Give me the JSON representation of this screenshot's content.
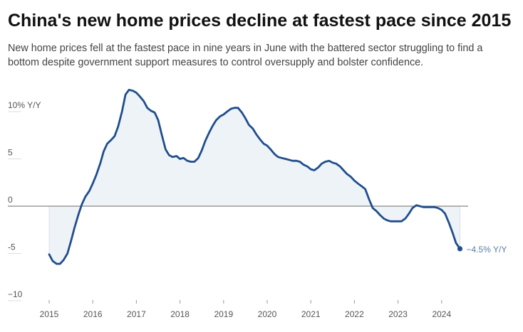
{
  "title": "China's new home prices decline at fastest pace since 2015",
  "subtitle": "New home prices fell at the fastest pace in nine years in June with the battered sector struggling to find a bottom despite government support measures to control oversupply and bolster confidence.",
  "colors": {
    "line": "#1f4e8c",
    "area": "#eef3f7",
    "zero_line": "#888888",
    "grid": "#dddddd"
  },
  "chart_data": {
    "type": "area",
    "xlabel": "",
    "ylabel": "",
    "ylim": [
      -10,
      12
    ],
    "xlim": [
      2015.0,
      2025.0
    ],
    "y_ticks": [
      {
        "value": 10,
        "label": "10% Y/Y"
      },
      {
        "value": 5,
        "label": "5"
      },
      {
        "value": 0,
        "label": "0"
      },
      {
        "value": -5,
        "label": "-5"
      },
      {
        "value": -10,
        "label": "−10"
      }
    ],
    "x_ticks": [
      "2015",
      "2016",
      "2017",
      "2018",
      "2019",
      "2020",
      "2021",
      "2022",
      "2023",
      "2024"
    ],
    "grid": false,
    "end_label": "−4.5% Y/Y",
    "series": [
      {
        "x": [
          2015.0,
          2015.08,
          2015.17,
          2015.25,
          2015.33,
          2015.42,
          2015.5,
          2015.58,
          2015.67,
          2015.75,
          2015.83,
          2015.92,
          2016.0,
          2016.08,
          2016.17,
          2016.25,
          2016.33,
          2016.42,
          2016.5,
          2016.58,
          2016.67,
          2016.75,
          2016.83,
          2016.92,
          2017.0,
          2017.08,
          2017.17,
          2017.25,
          2017.33,
          2017.42,
          2017.5,
          2017.58,
          2017.67,
          2017.75,
          2017.83,
          2017.92,
          2018.0,
          2018.08,
          2018.17,
          2018.25,
          2018.33,
          2018.42,
          2018.5,
          2018.58,
          2018.67,
          2018.75,
          2018.83,
          2018.92,
          2019.0,
          2019.08,
          2019.17,
          2019.25,
          2019.33,
          2019.42,
          2019.5,
          2019.58,
          2019.67,
          2019.75,
          2019.83,
          2019.92,
          2020.0,
          2020.08,
          2020.17,
          2020.25,
          2020.33,
          2020.42,
          2020.5,
          2020.58,
          2020.67,
          2020.75,
          2020.83,
          2020.92,
          2021.0,
          2021.08,
          2021.17,
          2021.25,
          2021.33,
          2021.42,
          2021.5,
          2021.58,
          2021.67,
          2021.75,
          2021.83,
          2021.92,
          2022.0,
          2022.08,
          2022.17,
          2022.25,
          2022.33,
          2022.42,
          2022.5,
          2022.58,
          2022.67,
          2022.75,
          2022.83,
          2022.92,
          2023.0,
          2023.08,
          2023.17,
          2023.25,
          2023.33,
          2023.42,
          2023.5,
          2023.58,
          2023.67,
          2023.75,
          2023.83,
          2023.92,
          2024.0,
          2024.08,
          2024.17,
          2024.25,
          2024.33,
          2024.42
        ],
        "y": [
          -5.1,
          -5.8,
          -6.1,
          -6.1,
          -5.7,
          -5.0,
          -3.7,
          -2.3,
          -0.9,
          0.2,
          1.0,
          1.6,
          2.4,
          3.3,
          4.5,
          5.8,
          6.6,
          7.0,
          7.4,
          8.4,
          10.0,
          11.8,
          12.3,
          12.2,
          12.0,
          11.6,
          11.1,
          10.4,
          10.1,
          9.9,
          9.1,
          7.6,
          6.0,
          5.4,
          5.2,
          5.3,
          5.0,
          5.1,
          4.8,
          4.7,
          4.7,
          5.1,
          5.9,
          6.9,
          7.8,
          8.5,
          9.1,
          9.5,
          9.7,
          10.0,
          10.3,
          10.4,
          10.4,
          9.9,
          9.3,
          8.6,
          8.2,
          7.6,
          7.1,
          6.6,
          6.4,
          6.0,
          5.5,
          5.2,
          5.1,
          5.0,
          4.9,
          4.8,
          4.8,
          4.7,
          4.4,
          4.2,
          3.9,
          3.8,
          4.1,
          4.5,
          4.7,
          4.8,
          4.6,
          4.5,
          4.2,
          3.8,
          3.4,
          3.1,
          2.7,
          2.4,
          2.1,
          1.8,
          0.8,
          -0.2,
          -0.5,
          -0.9,
          -1.3,
          -1.5,
          -1.6,
          -1.6,
          -1.6,
          -1.6,
          -1.3,
          -0.8,
          -0.2,
          0.1,
          0.0,
          -0.1,
          -0.1,
          -0.1,
          -0.1,
          -0.2,
          -0.4,
          -0.8,
          -1.8,
          -2.8,
          -3.9,
          -4.5
        ]
      }
    ]
  }
}
